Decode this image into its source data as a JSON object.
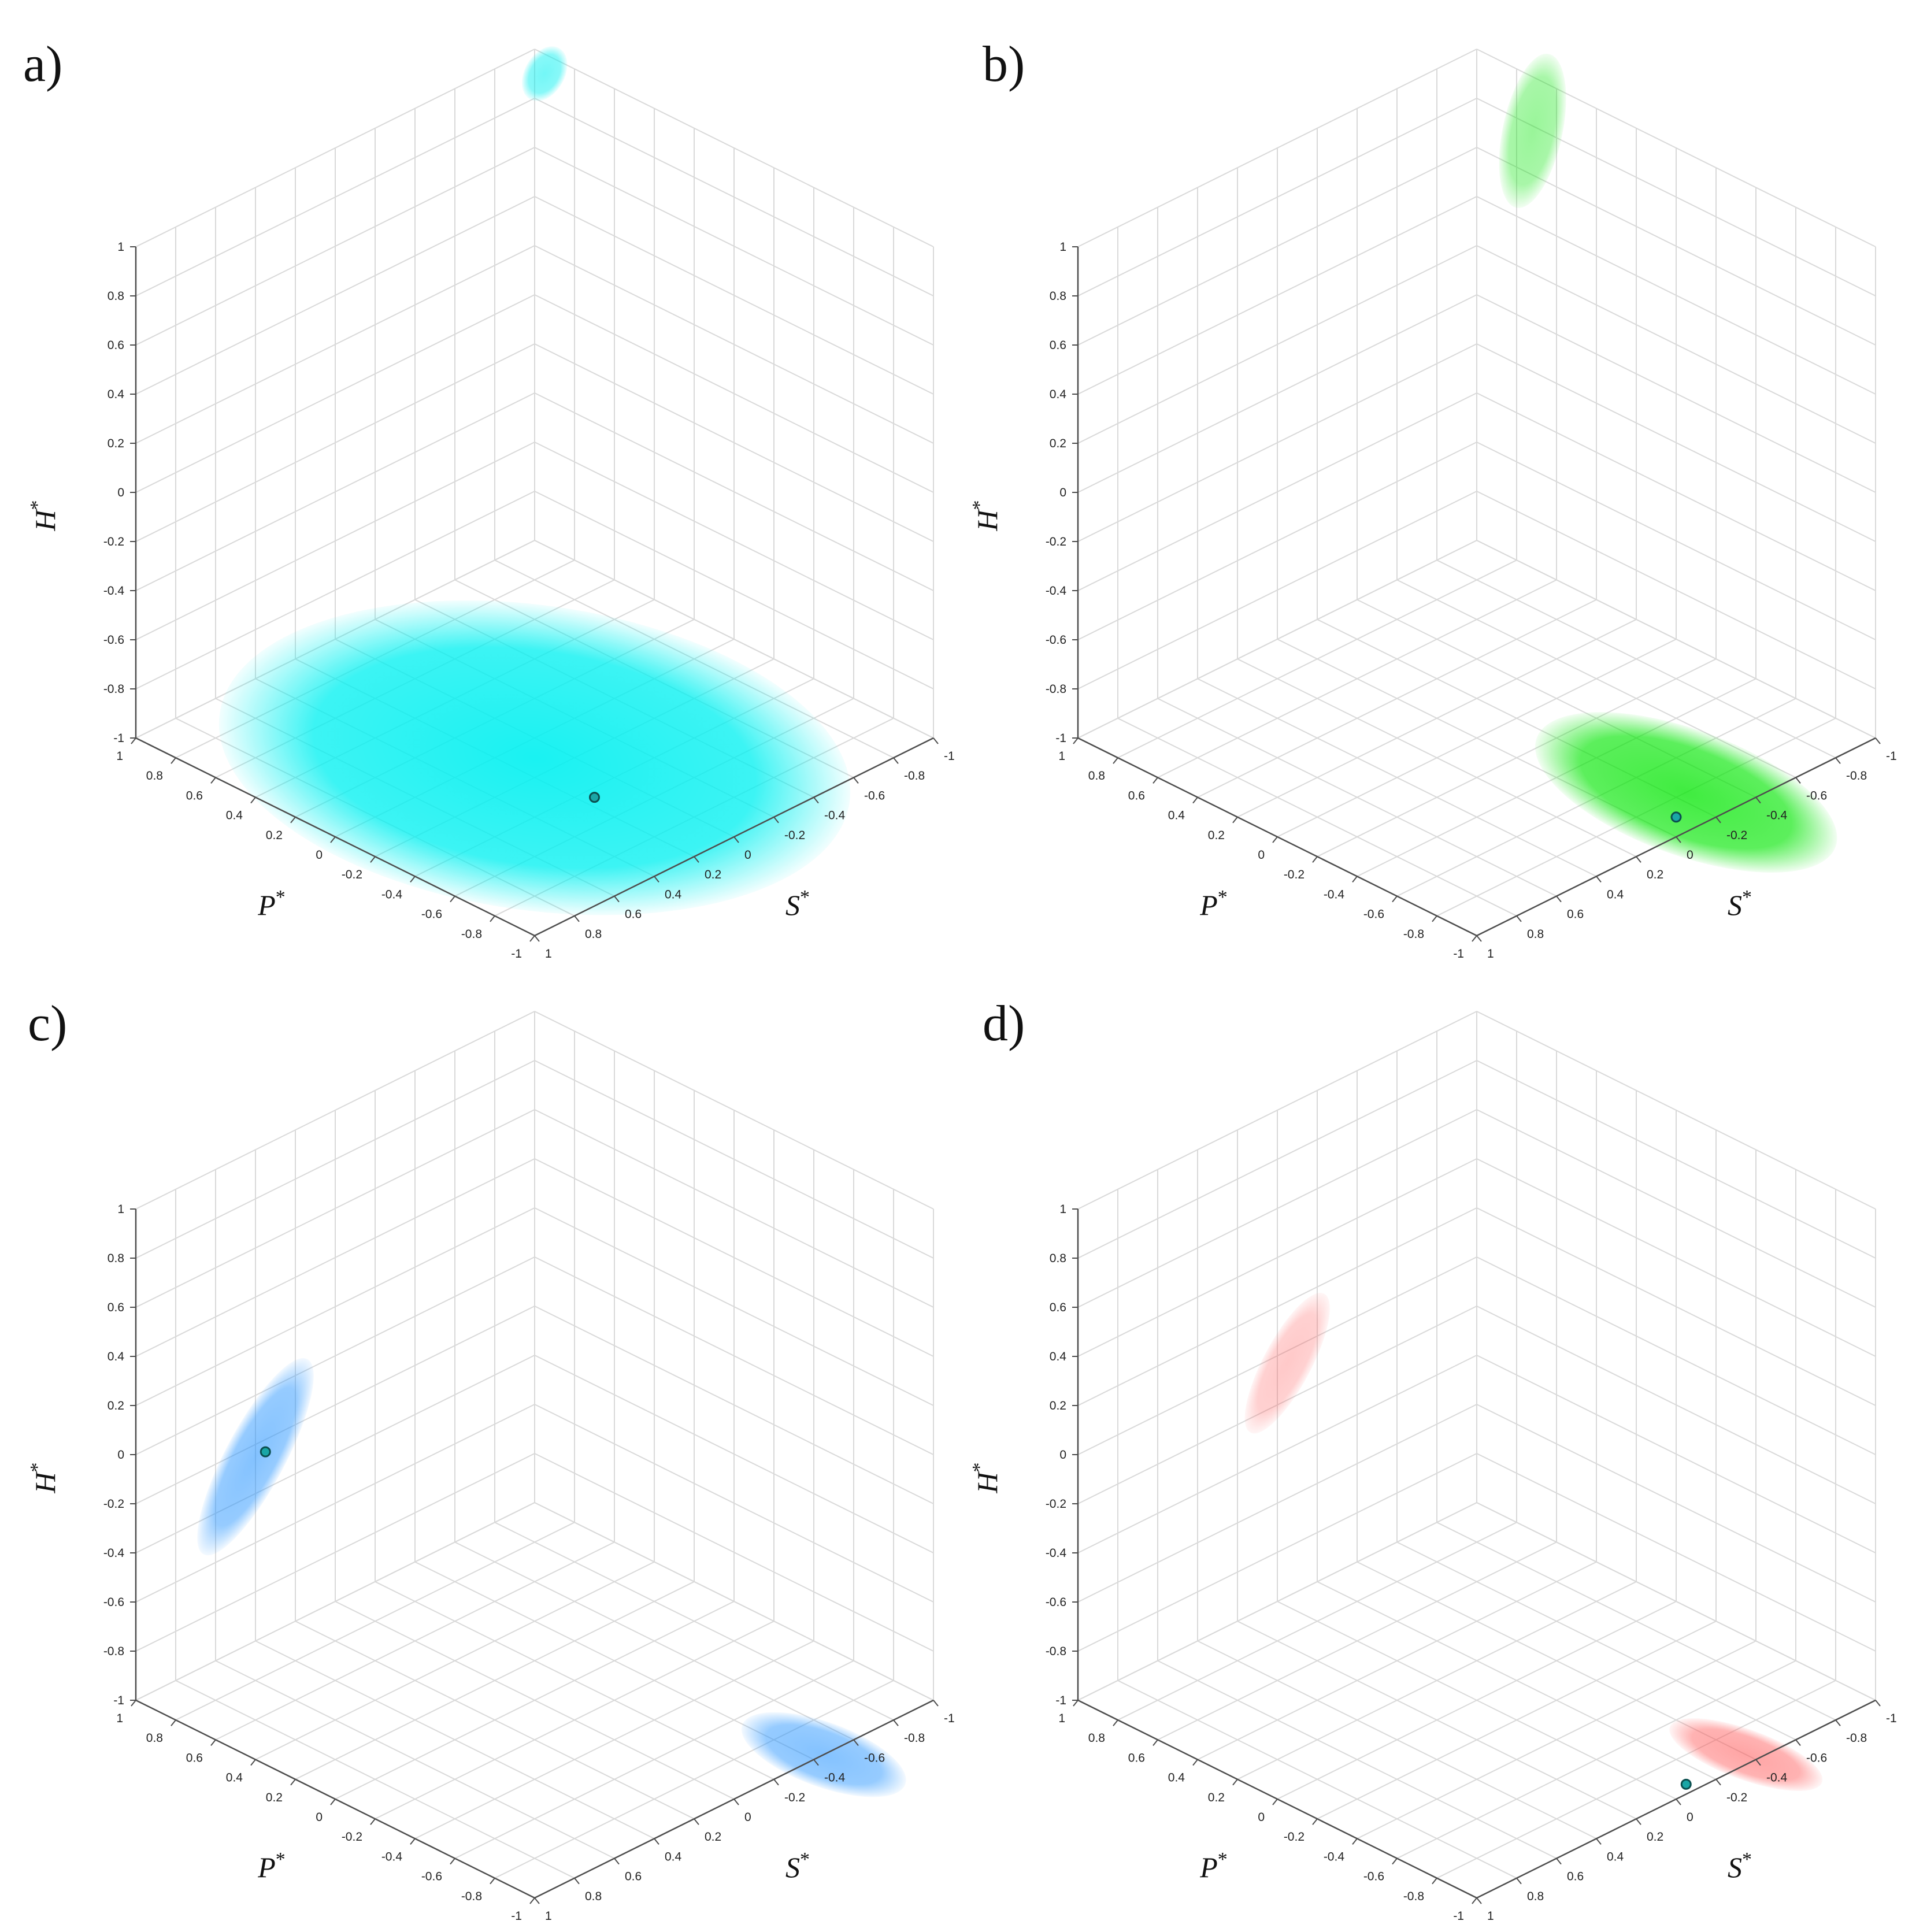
{
  "colors": {
    "grid": "#d9d9d9",
    "axis": "#4d4d4d",
    "text": "#111111",
    "marker_fill": "#1aa6a6",
    "marker_stroke": "#0b4f4f"
  },
  "chart_data": [
    {
      "type": "scatter3d",
      "panel_label": "a)",
      "xlabel": "S",
      "xlabel_sup": "*",
      "ylabel": "P",
      "ylabel_sup": "*",
      "zlabel": "H",
      "zlabel_sup": "*",
      "xlim": [
        -1,
        1
      ],
      "ylim": [
        -1,
        1
      ],
      "zlim": [
        -1,
        1
      ],
      "ticks": [
        -1,
        -0.8,
        -0.6,
        -0.4,
        -0.2,
        0,
        0.2,
        0.4,
        0.6,
        0.8,
        1
      ],
      "grid": true,
      "cloud_color": "#00f0f0",
      "projections": [
        {
          "plane": "floor",
          "center": [
            0.1,
            -0.1
          ],
          "radius": [
            0.85,
            1.1
          ],
          "tilt_deg": 8,
          "opacity": 0.9
        },
        {
          "plane": "back",
          "center": [
            0.95,
            0.92
          ],
          "radius": [
            0.1,
            0.12
          ],
          "tilt_deg": 30,
          "opacity": 0.55
        }
      ],
      "point": {
        "S": 0.15,
        "P": -0.45,
        "H": -1
      }
    },
    {
      "type": "scatter3d",
      "panel_label": "b)",
      "xlabel": "S",
      "xlabel_sup": "*",
      "ylabel": "P",
      "ylabel_sup": "*",
      "zlabel": "H",
      "zlabel_sup": "*",
      "xlim": [
        -1,
        1
      ],
      "ylim": [
        -1,
        1
      ],
      "zlim": [
        -1,
        1
      ],
      "ticks": [
        -1,
        -0.8,
        -0.6,
        -0.4,
        -0.2,
        0,
        0.2,
        0.4,
        0.6,
        0.8,
        1
      ],
      "grid": true,
      "cloud_color": "#00e600",
      "projections": [
        {
          "plane": "floor",
          "center": [
            -0.25,
            -0.8
          ],
          "radius": [
            0.35,
            0.55
          ],
          "tilt_deg": 20,
          "opacity": 0.75
        },
        {
          "plane": "back",
          "center": [
            0.72,
            0.78
          ],
          "radius": [
            0.15,
            0.32
          ],
          "tilt_deg": 12,
          "opacity": 0.4
        }
      ],
      "point": {
        "S": -0.1,
        "P": -0.9,
        "H": -1
      }
    },
    {
      "type": "scatter3d",
      "panel_label": "c)",
      "xlabel": "S",
      "xlabel_sup": "*",
      "ylabel": "P",
      "ylabel_sup": "*",
      "zlabel": "H",
      "zlabel_sup": "*",
      "xlim": [
        -1,
        1
      ],
      "ylim": [
        -1,
        1
      ],
      "zlim": [
        -1,
        1
      ],
      "ticks": [
        -1,
        -0.8,
        -0.6,
        -0.4,
        -0.2,
        0,
        0.2,
        0.4,
        0.6,
        0.8,
        1
      ],
      "grid": true,
      "cloud_color": "#1e90ff",
      "projections": [
        {
          "plane": "left",
          "center": [
            0.4,
            -0.25
          ],
          "radius": [
            0.15,
            0.45
          ],
          "tilt_deg": -62,
          "opacity": 0.55
        },
        {
          "plane": "floor",
          "center": [
            -0.45,
            -1.0
          ],
          "radius": [
            0.18,
            0.3
          ],
          "tilt_deg": 20,
          "opacity": 0.55
        }
      ],
      "point": {
        "S": 0.35,
        "P": 1,
        "H": -0.25
      }
    },
    {
      "type": "scatter3d",
      "panel_label": "d)",
      "xlabel": "S",
      "xlabel_sup": "*",
      "ylabel": "P",
      "ylabel_sup": "*",
      "zlabel": "H",
      "zlabel_sup": "*",
      "xlim": [
        -1,
        1
      ],
      "ylim": [
        -1,
        1
      ],
      "zlim": [
        -1,
        1
      ],
      "ticks": [
        -1,
        -0.8,
        -0.6,
        -0.4,
        -0.2,
        0,
        0.2,
        0.4,
        0.6,
        0.8,
        1
      ],
      "grid": true,
      "cloud_color": "#ff4a4a",
      "projections": [
        {
          "plane": "left",
          "center": [
            -0.05,
            -0.05
          ],
          "radius": [
            0.12,
            0.32
          ],
          "tilt_deg": -62,
          "opacity": 0.3
        },
        {
          "plane": "floor",
          "center": [
            -0.4,
            -0.95
          ],
          "radius": [
            0.14,
            0.28
          ],
          "tilt_deg": 20,
          "opacity": 0.5
        }
      ],
      "point": {
        "S": -0.1,
        "P": -0.95,
        "H": -1
      }
    }
  ]
}
